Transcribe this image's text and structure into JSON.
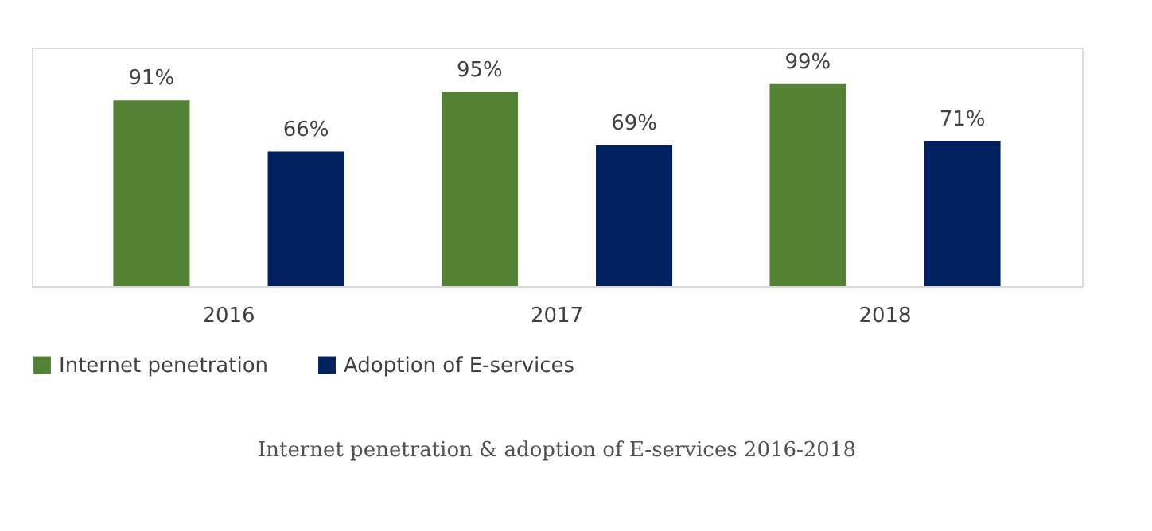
{
  "chart_data": {
    "type": "bar",
    "categories": [
      "2016",
      "2017",
      "2018"
    ],
    "series": [
      {
        "name": "Internet penetration",
        "color": "#548235",
        "values": [
          91,
          95,
          99
        ],
        "value_labels": [
          "91%",
          "95%",
          "99%"
        ]
      },
      {
        "name": "Adoption of E-services",
        "color": "#002060",
        "values": [
          66,
          69,
          71
        ],
        "value_labels": [
          "66%",
          "69%",
          "71%"
        ]
      }
    ],
    "legend": "bottom",
    "grid": false,
    "annotations": [
      "Internet penetration & adoption of E-services 2016-2018"
    ]
  }
}
